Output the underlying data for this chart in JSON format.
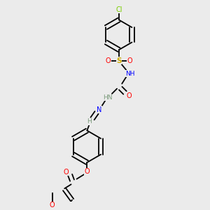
{
  "background_color": "#ebebeb",
  "bond_color": "#000000",
  "atom_colors": {
    "C": "#000000",
    "H": "#7a9a7a",
    "N": "#0000ff",
    "O": "#ff0000",
    "S": "#ccaa00",
    "Cl": "#7acd00"
  },
  "figsize": [
    3.0,
    3.0
  ],
  "dpi": 100,
  "lw": 1.3,
  "sep": 0.011
}
